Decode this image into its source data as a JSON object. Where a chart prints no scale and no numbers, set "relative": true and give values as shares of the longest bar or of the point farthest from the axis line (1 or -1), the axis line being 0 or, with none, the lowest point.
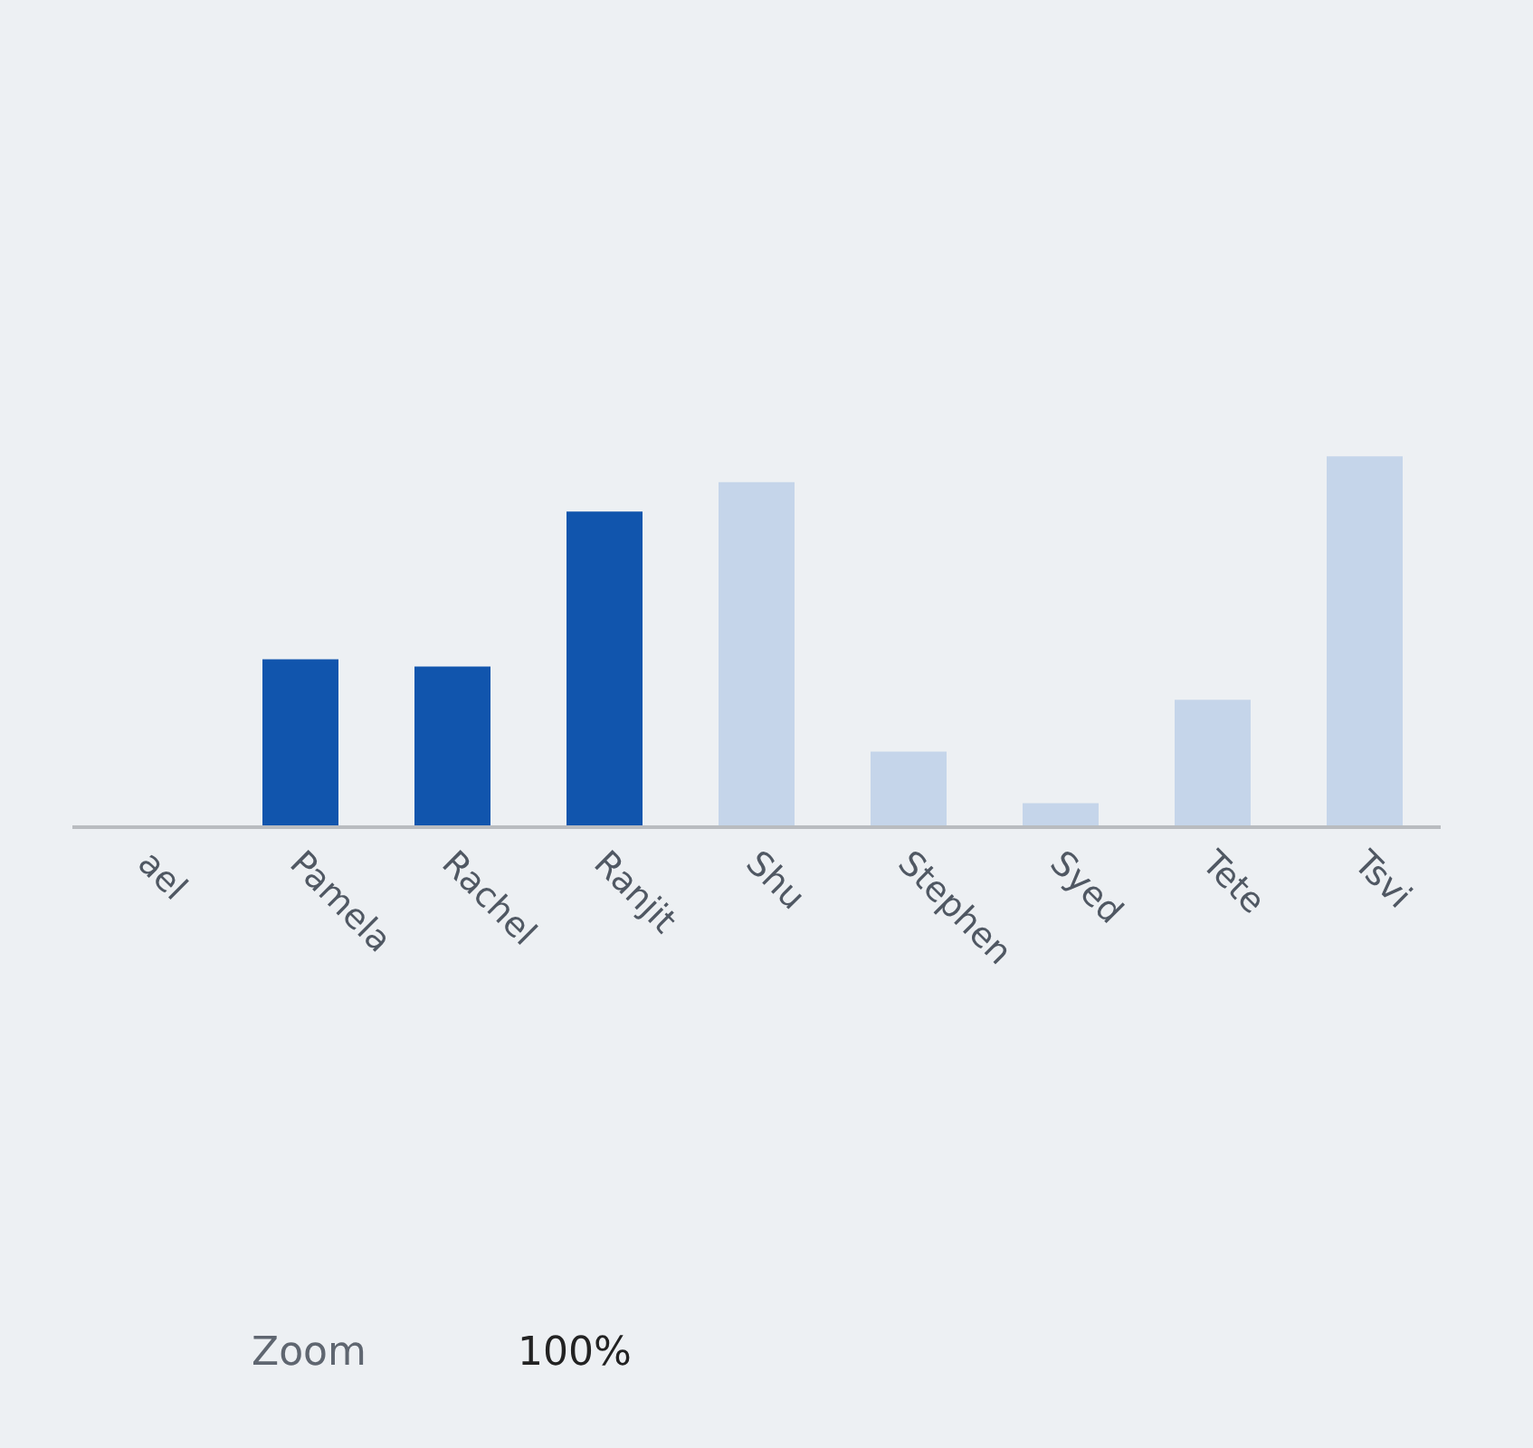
{
  "chart_data": {
    "type": "bar",
    "relative": true,
    "categories": [
      "ael",
      "Pamela",
      "Rachel",
      "Ranjit",
      "Shu",
      "Stephen",
      "Syed",
      "Tete",
      "Tsvi"
    ],
    "values": [
      null,
      0.45,
      0.43,
      0.85,
      0.93,
      0.2,
      0.06,
      0.34,
      1
    ],
    "colors": [
      "#1155ad",
      "#1155ad",
      "#1155ad",
      "#1155ad",
      "#c5d5ea",
      "#c5d5ea",
      "#c5d5ea",
      "#c5d5ea",
      "#c5d5ea"
    ],
    "annotations": [
      "Zoom",
      "100%"
    ]
  }
}
